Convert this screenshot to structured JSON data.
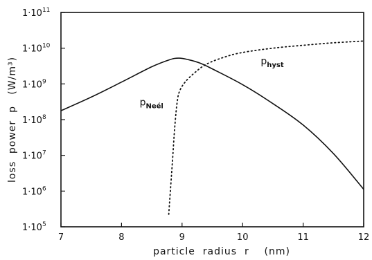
{
  "chart_data": {
    "type": "line",
    "title": "",
    "xlabel": "particle  radius  r    (nm)",
    "ylabel": "loss  power  p   (W/m³)",
    "xlim": [
      7,
      12
    ],
    "ylim_log10": [
      5,
      11
    ],
    "y_scale": "log",
    "grid": false,
    "x_ticks": [
      {
        "value": 7,
        "label": "7"
      },
      {
        "value": 8,
        "label": "8"
      },
      {
        "value": 9,
        "label": "9"
      },
      {
        "value": 10,
        "label": "10"
      },
      {
        "value": 11,
        "label": "11"
      },
      {
        "value": 12,
        "label": "12"
      }
    ],
    "y_ticks": [
      {
        "value": 5,
        "base": "1·10",
        "exp": "5"
      },
      {
        "value": 6,
        "base": "1·10",
        "exp": "6"
      },
      {
        "value": 7,
        "base": "1·10",
        "exp": "7"
      },
      {
        "value": 8,
        "base": "1·10",
        "exp": "8"
      },
      {
        "value": 9,
        "base": "1·10",
        "exp": "9"
      },
      {
        "value": 10,
        "base": "1·10",
        "exp": "10"
      },
      {
        "value": 11,
        "base": "1·10",
        "exp": "11"
      }
    ],
    "series": [
      {
        "label_main": "p",
        "label_sub": "Neél",
        "style": "solid",
        "color": "#111111",
        "label_at": [
          8.3,
          8.4
        ],
        "x": [
          7.0,
          7.5,
          8.0,
          8.5,
          8.8,
          8.95,
          9.1,
          9.3,
          9.5,
          10.0,
          10.5,
          11.0,
          11.5,
          12.0
        ],
        "y_log10": [
          8.25,
          8.63,
          9.05,
          9.48,
          9.68,
          9.72,
          9.68,
          9.58,
          9.42,
          8.98,
          8.45,
          7.85,
          7.05,
          6.05
        ]
      },
      {
        "label_main": "p",
        "label_sub": "hyst",
        "style": "dotted",
        "color": "#111111",
        "label_at": [
          10.3,
          9.55
        ],
        "x": [
          8.78,
          8.84,
          8.88,
          8.92,
          8.96,
          9.05,
          9.2,
          9.4,
          9.7,
          10.0,
          10.5,
          11.0,
          11.5,
          12.0
        ],
        "y_log10": [
          5.35,
          6.8,
          7.8,
          8.5,
          8.8,
          9.05,
          9.3,
          9.55,
          9.75,
          9.88,
          10.0,
          10.08,
          10.15,
          10.2
        ]
      }
    ]
  }
}
